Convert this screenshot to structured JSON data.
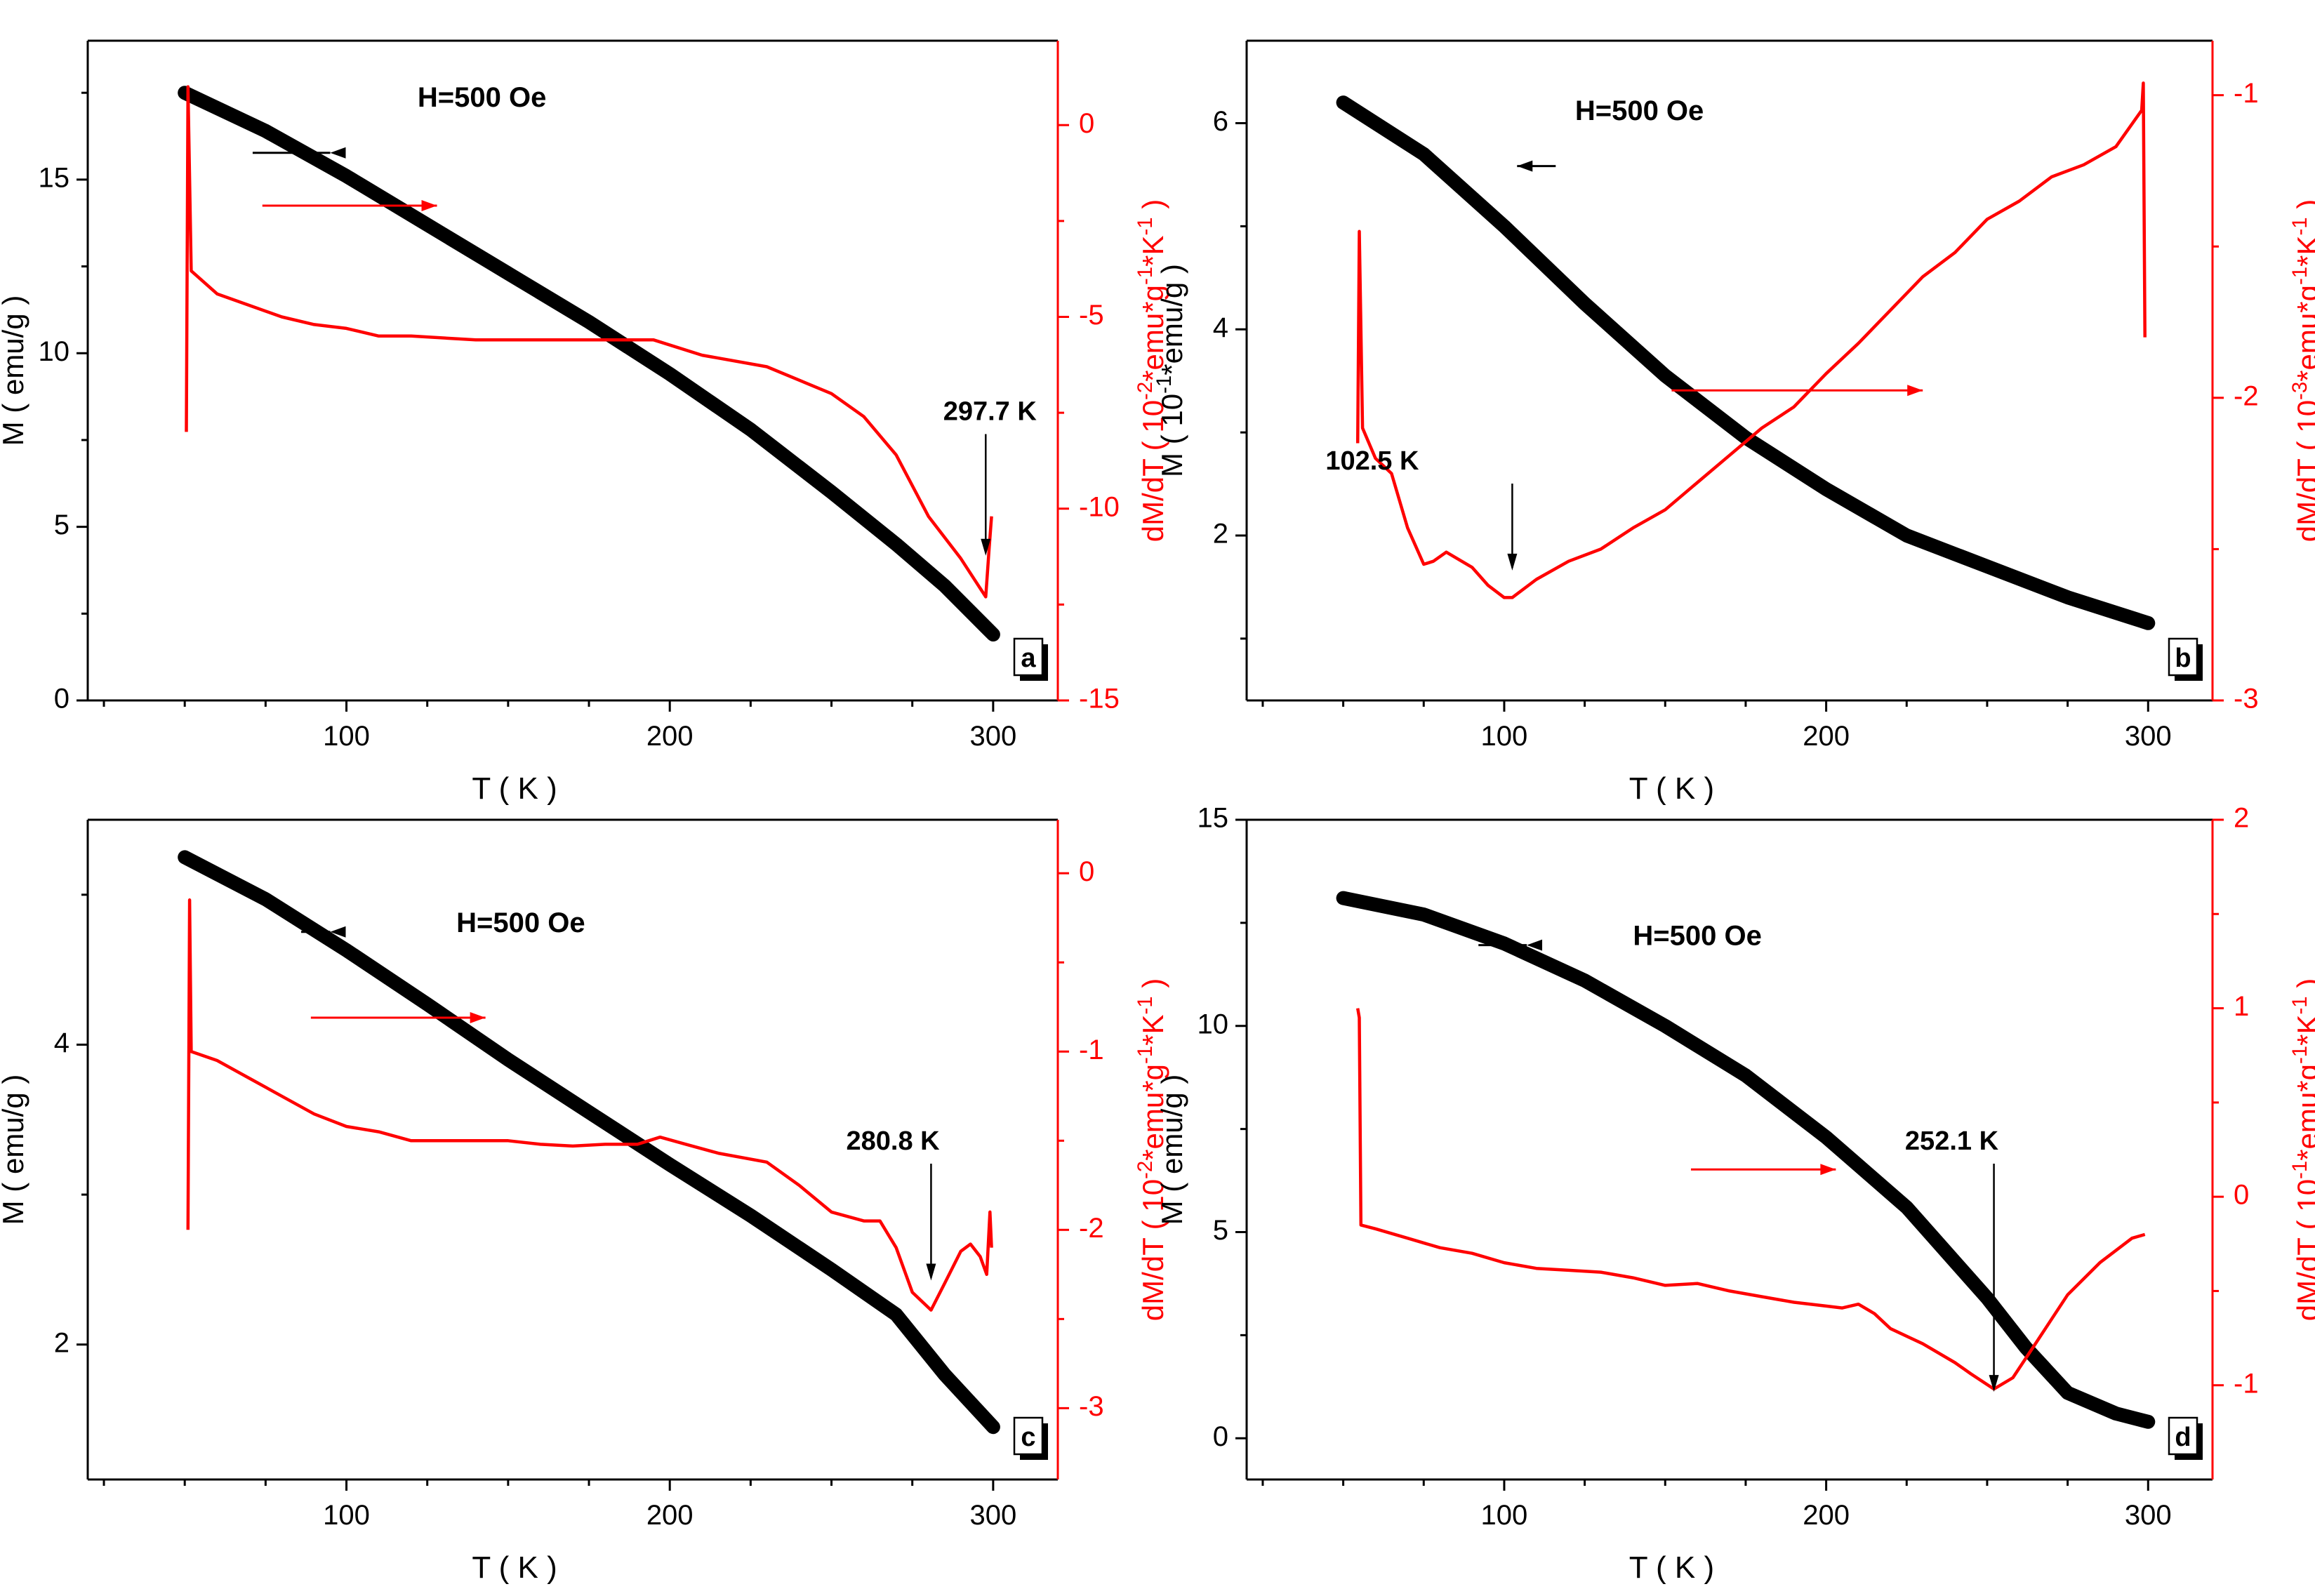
{
  "figure": {
    "colors": {
      "magnetization": "#000000",
      "derivative": "#ff0000",
      "axis": "#000000"
    }
  },
  "chart_data": [
    {
      "panel": "a",
      "type": "line",
      "xlabel": "T ( K )",
      "ylabel": "M ( emu/g )",
      "y2label": "dM/dT ( 10-2*emu*g-1*K-1 )",
      "field_label": "H=500 Oe",
      "xlim": [
        20,
        320
      ],
      "ylim": [
        0,
        19
      ],
      "y2lim": [
        -15,
        2.2
      ],
      "xticks": [
        100,
        200,
        300
      ],
      "yticks": [
        0,
        5,
        10,
        15
      ],
      "y2ticks": [
        -15,
        -10,
        -5,
        0
      ],
      "annotation": {
        "text": "297.7 K",
        "x": 297.7,
        "y2": -11.3
      },
      "series": [
        {
          "name": "M",
          "axis": "left",
          "color": "#000000",
          "x": [
            50,
            75,
            100,
            125,
            150,
            175,
            200,
            225,
            250,
            270,
            285,
            300
          ],
          "y": [
            17.5,
            16.4,
            15.1,
            13.7,
            12.3,
            10.9,
            9.4,
            7.8,
            6.0,
            4.5,
            3.3,
            1.9
          ]
        },
        {
          "name": "dM/dT",
          "axis": "right",
          "color": "#ff0000",
          "x": [
            50.5,
            51,
            52,
            60,
            70,
            80,
            90,
            100,
            110,
            120,
            140,
            160,
            180,
            195,
            210,
            230,
            250,
            260,
            270,
            280,
            290,
            297.7,
            298.8,
            299.5
          ],
          "y": [
            -8.0,
            1.0,
            -3.8,
            -4.4,
            -4.7,
            -5.0,
            -5.2,
            -5.3,
            -5.5,
            -5.5,
            -5.6,
            -5.6,
            -5.6,
            -5.6,
            -6.0,
            -6.3,
            -7.0,
            -7.6,
            -8.6,
            -10.2,
            -11.3,
            -12.3,
            -11.0,
            -10.2
          ]
        }
      ]
    },
    {
      "panel": "b",
      "type": "line",
      "xlabel": "T ( K )",
      "ylabel": "M ( 10-1*emu/g )",
      "y2label": "dM/dT ( 10-3*emu*g-1*K-1 )",
      "field_label": "H=500 Oe",
      "xlim": [
        20,
        320
      ],
      "ylim": [
        0.4,
        6.8
      ],
      "y2lim": [
        -3,
        -0.82
      ],
      "xticks": [
        100,
        200,
        300
      ],
      "yticks": [
        2,
        4,
        6
      ],
      "y2ticks": [
        -3,
        -2,
        -1
      ],
      "annotation": {
        "text": "102.5 K",
        "x": 102.5,
        "y2": -2.58
      },
      "series": [
        {
          "name": "M",
          "axis": "left",
          "color": "#000000",
          "x": [
            50,
            75,
            100,
            125,
            150,
            175,
            200,
            225,
            250,
            275,
            300
          ],
          "y": [
            6.2,
            5.7,
            5.0,
            4.25,
            3.55,
            2.95,
            2.45,
            2.0,
            1.7,
            1.4,
            1.15
          ]
        },
        {
          "name": "dM/dT",
          "axis": "right",
          "color": "#ff0000",
          "x": [
            54.5,
            55,
            56,
            60,
            65,
            70,
            75,
            78,
            82,
            90,
            95,
            100,
            102.5,
            110,
            120,
            130,
            140,
            150,
            160,
            170,
            180,
            190,
            200,
            210,
            220,
            230,
            240,
            250,
            260,
            270,
            280,
            290,
            298,
            298.5,
            299
          ],
          "y": [
            -2.15,
            -1.45,
            -2.1,
            -2.2,
            -2.25,
            -2.43,
            -2.55,
            -2.54,
            -2.51,
            -2.56,
            -2.62,
            -2.66,
            -2.66,
            -2.6,
            -2.54,
            -2.5,
            -2.43,
            -2.37,
            -2.28,
            -2.19,
            -2.1,
            -2.03,
            -1.92,
            -1.82,
            -1.71,
            -1.6,
            -1.52,
            -1.41,
            -1.35,
            -1.27,
            -1.23,
            -1.17,
            -1.05,
            -0.96,
            -1.8
          ]
        }
      ]
    },
    {
      "panel": "c",
      "type": "line",
      "xlabel": "T ( K )",
      "ylabel": "M ( emu/g )",
      "y2label": "dM/dT ( 10-2*emu*g-1*K-1 )",
      "field_label": "H=500 Oe",
      "xlim": [
        20,
        320
      ],
      "ylim": [
        1.1,
        5.5
      ],
      "y2lim": [
        -3.4,
        0.3
      ],
      "xticks": [
        100,
        200,
        300
      ],
      "yticks": [
        2,
        4
      ],
      "y2ticks": [
        -3,
        -2,
        -1,
        0
      ],
      "annotation": {
        "text": "280.8 K",
        "x": 280.8,
        "y2": -2.3
      },
      "series": [
        {
          "name": "M",
          "axis": "left",
          "color": "#000000",
          "x": [
            50,
            75,
            100,
            125,
            150,
            175,
            200,
            225,
            250,
            270,
            285,
            300
          ],
          "y": [
            5.25,
            4.97,
            4.63,
            4.27,
            3.9,
            3.55,
            3.2,
            2.86,
            2.5,
            2.2,
            1.8,
            1.45
          ]
        },
        {
          "name": "dM/dT",
          "axis": "right",
          "color": "#ff0000",
          "x": [
            51,
            51.5,
            52,
            60,
            70,
            80,
            90,
            100,
            110,
            120,
            130,
            140,
            150,
            160,
            170,
            180,
            190,
            197,
            205,
            215,
            230,
            240,
            250,
            260,
            265,
            270,
            275,
            280.8,
            285,
            290,
            293,
            296,
            298,
            299,
            299.5
          ],
          "y": [
            -2.0,
            -0.15,
            -1.0,
            -1.05,
            -1.15,
            -1.25,
            -1.35,
            -1.42,
            -1.45,
            -1.5,
            -1.5,
            -1.5,
            -1.5,
            -1.52,
            -1.53,
            -1.52,
            -1.52,
            -1.48,
            -1.52,
            -1.57,
            -1.62,
            -1.75,
            -1.9,
            -1.95,
            -1.95,
            -2.1,
            -2.35,
            -2.45,
            -2.3,
            -2.12,
            -2.08,
            -2.15,
            -2.25,
            -1.9,
            -2.1
          ]
        }
      ]
    },
    {
      "panel": "d",
      "type": "line",
      "xlabel": "T ( K )",
      "ylabel": "M ( emu/g )",
      "y2label": "dM/dT ( 10-1*emu*g-1*K-1 )",
      "field_label": "H=500 Oe",
      "xlim": [
        20,
        320
      ],
      "ylim": [
        -1,
        15
      ],
      "y2lim": [
        -1.5,
        2
      ],
      "xticks": [
        100,
        200,
        300
      ],
      "yticks": [
        0,
        5,
        10,
        15
      ],
      "y2ticks": [
        -1,
        0,
        1,
        2
      ],
      "annotation": {
        "text": "252.1 K",
        "x": 252.1,
        "y2": -1.05
      },
      "series": [
        {
          "name": "M",
          "axis": "left",
          "color": "#000000",
          "x": [
            50,
            75,
            100,
            125,
            150,
            175,
            200,
            225,
            250,
            262,
            275,
            290,
            300
          ],
          "y": [
            13.1,
            12.7,
            12.0,
            11.1,
            10.0,
            8.8,
            7.3,
            5.6,
            3.4,
            2.2,
            1.1,
            0.6,
            0.4
          ]
        },
        {
          "name": "dM/dT",
          "axis": "right",
          "color": "#ff0000",
          "x": [
            54.5,
            55,
            55.5,
            60,
            70,
            80,
            90,
            100,
            110,
            120,
            130,
            140,
            150,
            160,
            170,
            180,
            190,
            200,
            205,
            210,
            215,
            220,
            230,
            240,
            245,
            252.1,
            258,
            265,
            275,
            285,
            295,
            299
          ],
          "y": [
            1.0,
            0.95,
            -0.15,
            -0.17,
            -0.22,
            -0.27,
            -0.3,
            -0.35,
            -0.38,
            -0.39,
            -0.4,
            -0.43,
            -0.47,
            -0.46,
            -0.5,
            -0.53,
            -0.56,
            -0.58,
            -0.59,
            -0.57,
            -0.62,
            -0.7,
            -0.78,
            -0.88,
            -0.94,
            -1.02,
            -0.96,
            -0.78,
            -0.52,
            -0.35,
            -0.22,
            -0.2
          ]
        }
      ]
    }
  ]
}
